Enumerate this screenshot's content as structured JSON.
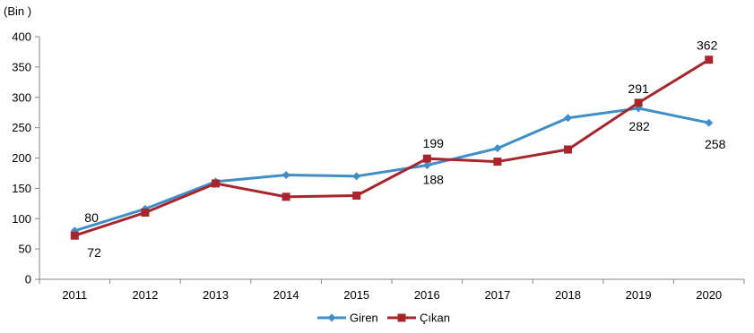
{
  "chart_data": {
    "type": "line",
    "unit_label": "(Bin )",
    "x": [
      "2011",
      "2012",
      "2013",
      "2014",
      "2015",
      "2016",
      "2017",
      "2018",
      "2019",
      "2020"
    ],
    "ylim": [
      0,
      400
    ],
    "yticks": [
      "0",
      "50",
      "100",
      "150",
      "200",
      "250",
      "300",
      "350",
      "400"
    ],
    "series": [
      {
        "name": "Giren",
        "color": "#3e8ec9",
        "marker": "diamond",
        "values": [
          80,
          116,
          161,
          172,
          170,
          188,
          216,
          266,
          282,
          258
        ]
      },
      {
        "name": "Çıkan",
        "color": "#a8262b",
        "marker": "square",
        "values": [
          72,
          110,
          158,
          136,
          138,
          199,
          194,
          214,
          291,
          362
        ]
      }
    ],
    "data_labels": [
      {
        "series": 0,
        "index": 0,
        "text": "80"
      },
      {
        "series": 1,
        "index": 0,
        "text": "72"
      },
      {
        "series": 1,
        "index": 5,
        "text": "199"
      },
      {
        "series": 0,
        "index": 5,
        "text": "188"
      },
      {
        "series": 1,
        "index": 8,
        "text": "291"
      },
      {
        "series": 0,
        "index": 8,
        "text": "282"
      },
      {
        "series": 1,
        "index": 9,
        "text": "362"
      },
      {
        "series": 0,
        "index": 9,
        "text": "258"
      }
    ],
    "legend_position": "bottom",
    "grid": false
  }
}
